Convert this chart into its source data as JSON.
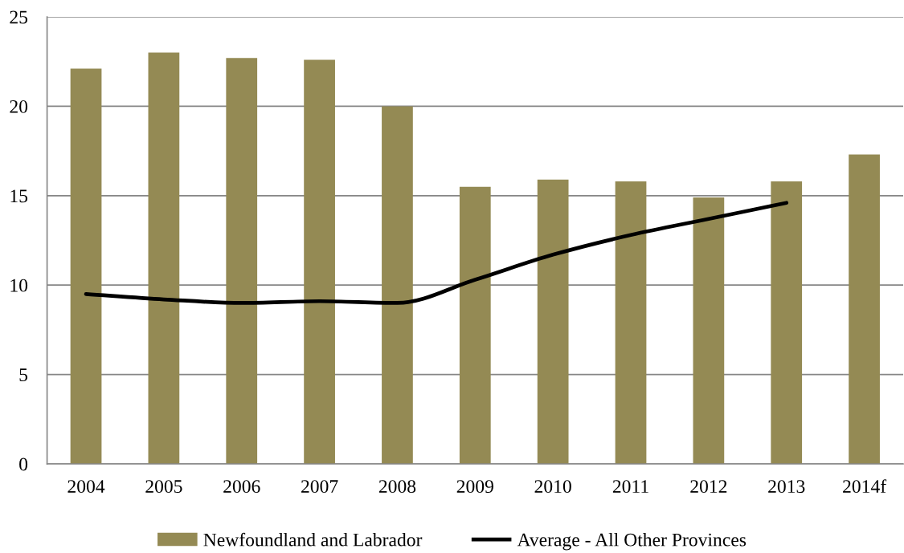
{
  "chart_data": {
    "type": "bar",
    "categories": [
      "2004",
      "2005",
      "2006",
      "2007",
      "2008",
      "2009",
      "2010",
      "2011",
      "2012",
      "2013",
      "2014f"
    ],
    "series": [
      {
        "name": "Newfoundland and Labrador",
        "color": "#948a54",
        "values": [
          22.1,
          23.0,
          22.7,
          22.6,
          20.0,
          15.5,
          15.9,
          15.8,
          14.9,
          15.8,
          17.3
        ]
      },
      {
        "name": "Average - All Other Provinces",
        "type": "line",
        "color": "#000000",
        "values": [
          9.5,
          9.2,
          9.0,
          9.1,
          9.0,
          10.3,
          11.7,
          12.8,
          13.7,
          14.6,
          null
        ]
      }
    ],
    "ylim": [
      0,
      25
    ],
    "yticks": [
      0,
      5,
      10,
      15,
      20,
      25
    ],
    "grid": "y",
    "legend": "bottom"
  }
}
